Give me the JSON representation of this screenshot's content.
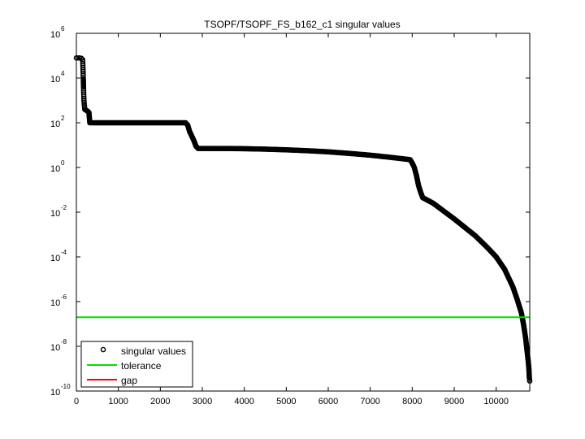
{
  "chart_data": {
    "type": "scatter",
    "title": "TSOPF/TSOPF_FS_b162_c1 singular values",
    "xlabel": "",
    "ylabel": "",
    "xlim": [
      0,
      10800
    ],
    "ylim_log10": [
      -10,
      6
    ],
    "yscale": "log",
    "grid": false,
    "legend_position": "bottom-left",
    "x_ticks": [
      {
        "value": 0,
        "label": "0"
      },
      {
        "value": 1000,
        "label": "1000"
      },
      {
        "value": 2000,
        "label": "2000"
      },
      {
        "value": 3000,
        "label": "3000"
      },
      {
        "value": 4000,
        "label": "4000"
      },
      {
        "value": 5000,
        "label": "5000"
      },
      {
        "value": 6000,
        "label": "6000"
      },
      {
        "value": 7000,
        "label": "7000"
      },
      {
        "value": 8000,
        "label": "8000"
      },
      {
        "value": 9000,
        "label": "9000"
      },
      {
        "value": 10000,
        "label": "10000"
      }
    ],
    "y_ticks": [
      {
        "exp": 6,
        "base": "10",
        "sup": "6"
      },
      {
        "exp": 4,
        "base": "10",
        "sup": "4"
      },
      {
        "exp": 2,
        "base": "10",
        "sup": "2"
      },
      {
        "exp": 0,
        "base": "10",
        "sup": "0"
      },
      {
        "exp": -2,
        "base": "10",
        "sup": "-2"
      },
      {
        "exp": -4,
        "base": "10",
        "sup": "-4"
      },
      {
        "exp": -6,
        "base": "10",
        "sup": "-6"
      },
      {
        "exp": -8,
        "base": "10",
        "sup": "-8"
      },
      {
        "exp": -10,
        "base": "10",
        "sup": "-10"
      }
    ],
    "series": [
      {
        "name": "singular values",
        "marker": "circle",
        "color": "#000000",
        "points_log10": [
          [
            1,
            4.9
          ],
          [
            40,
            4.9
          ],
          [
            80,
            4.9
          ],
          [
            120,
            4.88
          ],
          [
            150,
            4.82
          ],
          [
            160,
            4.3
          ],
          [
            165,
            4.0
          ],
          [
            170,
            3.6
          ],
          [
            175,
            3.3
          ],
          [
            180,
            3.0
          ],
          [
            190,
            2.8
          ],
          [
            200,
            2.6
          ],
          [
            240,
            2.55
          ],
          [
            280,
            2.5
          ],
          [
            300,
            2.45
          ],
          [
            320,
            2.0
          ],
          [
            400,
            2.0
          ],
          [
            800,
            2.0
          ],
          [
            1500,
            2.0
          ],
          [
            2200,
            2.0
          ],
          [
            2600,
            2.0
          ],
          [
            2650,
            1.9
          ],
          [
            2700,
            1.6
          ],
          [
            2800,
            1.2
          ],
          [
            2850,
            0.95
          ],
          [
            2900,
            0.85
          ],
          [
            3500,
            0.85
          ],
          [
            4000,
            0.84
          ],
          [
            4500,
            0.82
          ],
          [
            5000,
            0.79
          ],
          [
            5500,
            0.75
          ],
          [
            6000,
            0.7
          ],
          [
            6500,
            0.63
          ],
          [
            7000,
            0.55
          ],
          [
            7500,
            0.45
          ],
          [
            7950,
            0.35
          ],
          [
            8000,
            0.2
          ],
          [
            8050,
            0.0
          ],
          [
            8100,
            -0.35
          ],
          [
            8150,
            -0.8
          ],
          [
            8200,
            -1.1
          ],
          [
            8250,
            -1.35
          ],
          [
            8500,
            -1.6
          ],
          [
            9000,
            -2.3
          ],
          [
            9500,
            -3.05
          ],
          [
            9800,
            -3.6
          ],
          [
            10000,
            -4.0
          ],
          [
            10200,
            -4.55
          ],
          [
            10300,
            -4.95
          ],
          [
            10400,
            -5.35
          ],
          [
            10500,
            -5.9
          ],
          [
            10600,
            -6.5
          ],
          [
            10650,
            -7.0
          ],
          [
            10700,
            -7.6
          ],
          [
            10730,
            -8.1
          ],
          [
            10760,
            -8.6
          ],
          [
            10780,
            -9.0
          ],
          [
            10790,
            -9.4
          ],
          [
            10800,
            -9.55
          ]
        ]
      },
      {
        "name": "tolerance",
        "color": "#00dd00",
        "y_log10": -6.7
      },
      {
        "name": "gap",
        "color": "#ff0000"
      }
    ]
  }
}
